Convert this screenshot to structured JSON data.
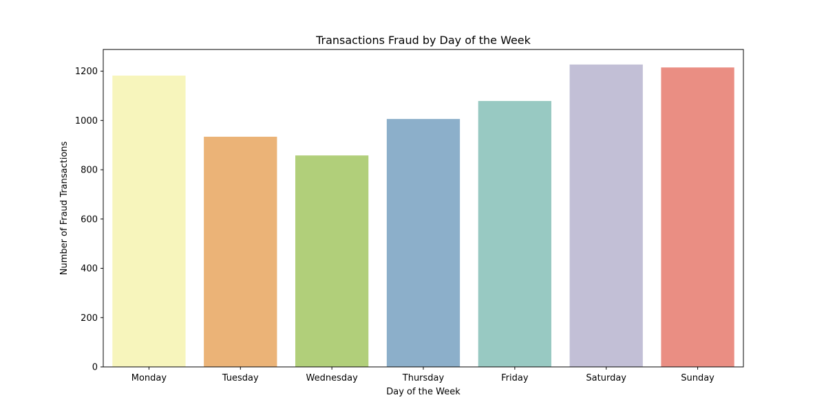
{
  "chart_data": {
    "type": "bar",
    "title": "Transactions Fraud by Day of the Week",
    "xlabel": "Day of the Week",
    "ylabel": "Number of Fraud Transactions",
    "categories": [
      "Monday",
      "Tuesday",
      "Wednesday",
      "Thursday",
      "Friday",
      "Saturday",
      "Sunday"
    ],
    "values": [
      1182,
      934,
      858,
      1006,
      1079,
      1227,
      1215
    ],
    "colors": [
      "#f7f5bc",
      "#ebb377",
      "#b1cf7a",
      "#8cafca",
      "#98c9c2",
      "#c2bfd6",
      "#ea8e83"
    ],
    "yticks": [
      0,
      200,
      400,
      600,
      800,
      1000,
      1200
    ],
    "ylim": [
      0,
      1288
    ],
    "grid": false,
    "legend": "none"
  }
}
